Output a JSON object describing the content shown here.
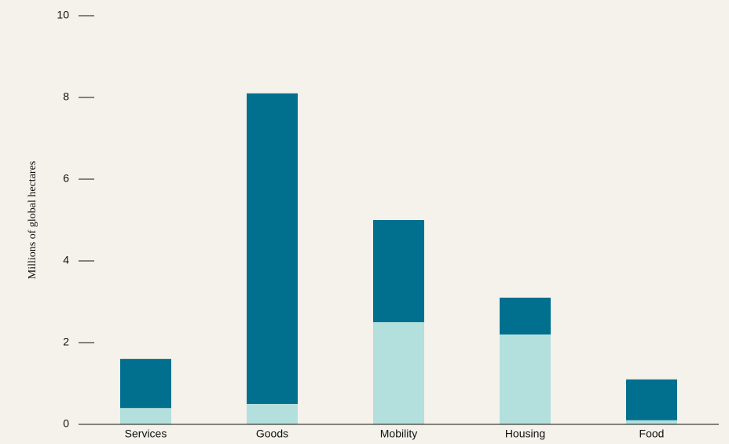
{
  "chart_data": {
    "type": "stacked_bar",
    "y_label": "Millions of global hectares",
    "categories": [
      "Services",
      "Goods",
      "Mobility",
      "Housing",
      "Food"
    ],
    "series": [
      {
        "color": "#b3dfdc",
        "values": [
          0.4,
          0.5,
          2.5,
          2.2,
          0.1
        ]
      },
      {
        "color": "#00708e",
        "values": [
          1.2,
          7.6,
          2.5,
          0.9,
          1.0
        ]
      }
    ],
    "ylim": [
      0,
      10
    ],
    "yticks": [
      0,
      2,
      4,
      6,
      8,
      10
    ]
  }
}
